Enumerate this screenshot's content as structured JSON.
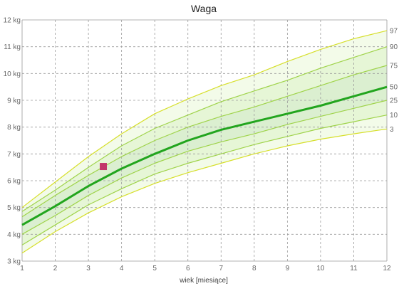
{
  "chart_data": {
    "type": "line",
    "title": "Waga",
    "xlabel": "wiek [miesiące]",
    "ylabel": "",
    "xlim": [
      1,
      12
    ],
    "ylim": [
      3,
      12
    ],
    "grid": true,
    "x_ticks": [
      "1",
      "2",
      "3",
      "4",
      "5",
      "6",
      "7",
      "8",
      "9",
      "10",
      "11",
      "12"
    ],
    "y_ticks": [
      "3 kg",
      "4 kg",
      "5 kg",
      "6 kg",
      "7 kg",
      "8 kg",
      "9 kg",
      "10 kg",
      "11 kg",
      "12 kg"
    ],
    "x": [
      1,
      2,
      3,
      4,
      5,
      6,
      7,
      8,
      9,
      10,
      11,
      12
    ],
    "percentiles": [
      {
        "name": "3",
        "values": [
          3.3,
          4.1,
          4.8,
          5.4,
          5.9,
          6.3,
          6.65,
          7.0,
          7.3,
          7.55,
          7.75,
          7.93
        ]
      },
      {
        "name": "10",
        "values": [
          3.6,
          4.35,
          5.1,
          5.7,
          6.25,
          6.65,
          7.0,
          7.35,
          7.65,
          7.95,
          8.2,
          8.45
        ]
      },
      {
        "name": "25",
        "values": [
          4.0,
          4.7,
          5.45,
          6.1,
          6.65,
          7.1,
          7.45,
          7.75,
          8.1,
          8.4,
          8.7,
          9.0
        ]
      },
      {
        "name": "50",
        "values": [
          4.35,
          5.05,
          5.8,
          6.45,
          7.0,
          7.5,
          7.9,
          8.2,
          8.5,
          8.8,
          9.15,
          9.5
        ]
      },
      {
        "name": "75",
        "values": [
          4.65,
          5.45,
          6.2,
          6.9,
          7.5,
          8.0,
          8.4,
          8.75,
          9.15,
          9.55,
          9.95,
          10.3
        ]
      },
      {
        "name": "90",
        "values": [
          4.85,
          5.65,
          6.5,
          7.3,
          7.95,
          8.45,
          8.95,
          9.35,
          9.75,
          10.2,
          10.6,
          11.0
        ]
      },
      {
        "name": "97",
        "values": [
          5.0,
          5.95,
          6.9,
          7.75,
          8.5,
          9.05,
          9.55,
          9.95,
          10.45,
          10.9,
          11.3,
          11.6
        ]
      }
    ],
    "measurements": [
      {
        "x": 3.45,
        "y": 6.53
      }
    ],
    "colors": {
      "band_outer": "#f3fbe9",
      "band_mid": "#e6f6d6",
      "band_inner": "#dbefd0",
      "line_outer": "#d6df2b",
      "line_mid": "#9fd34a",
      "line_median": "#22a51e",
      "measurement": "#c2366a",
      "grid": "#9a9a9a"
    }
  }
}
